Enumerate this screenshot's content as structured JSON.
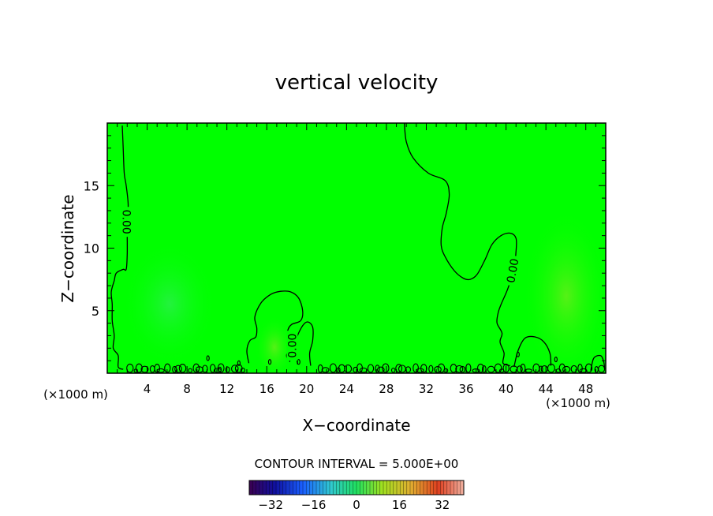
{
  "chart_data": {
    "type": "heatmap",
    "title": "vertical velocity",
    "xlabel": "X−coordinate",
    "ylabel": "Z−coordinate",
    "x_unit_label": "(×1000 m)",
    "z_unit_label": "(×1000 m)",
    "xlim": [
      0,
      50
    ],
    "ylim": [
      0,
      20
    ],
    "x_ticks": [
      4,
      8,
      12,
      16,
      20,
      24,
      28,
      32,
      36,
      40,
      44,
      48
    ],
    "y_ticks": [
      5,
      10,
      15
    ],
    "contour_level": 0,
    "contour_label": "0.00",
    "contour_interval_text": "CONTOUR INTERVAL = 5.000E+00",
    "colorbar": {
      "min": -40,
      "max": 40,
      "step": 5,
      "tick_labels": [
        "−32",
        "−16",
        "0",
        "16",
        "32"
      ],
      "tick_values": [
        -32,
        -16,
        0,
        16,
        32
      ]
    },
    "background_color": "#00ff00",
    "contours": [
      {
        "name": "left-contour",
        "points": [
          [
            1.5,
            19.8
          ],
          [
            1.6,
            18
          ],
          [
            1.7,
            16
          ],
          [
            1.9,
            15
          ],
          [
            2.1,
            13.5
          ],
          [
            2.0,
            12.3
          ],
          [
            2.0,
            11
          ],
          [
            2.0,
            9.5
          ],
          [
            1.9,
            8.3
          ],
          [
            1.6,
            8.3
          ],
          [
            0.9,
            8.0
          ],
          [
            0.7,
            7.4
          ],
          [
            0.4,
            6.5
          ],
          [
            0.5,
            5.5
          ],
          [
            0.5,
            4.2
          ],
          [
            0.7,
            3.0
          ],
          [
            0.6,
            2.0
          ],
          [
            1.1,
            1.4
          ],
          [
            1.1,
            0.5
          ],
          [
            1.6,
            0.3
          ]
        ]
      },
      {
        "name": "central-lobe",
        "points": [
          [
            14.2,
            0.8
          ],
          [
            14.0,
            1.8
          ],
          [
            14.3,
            2.6
          ],
          [
            14.9,
            2.9
          ],
          [
            15.0,
            3.6
          ],
          [
            14.8,
            4.5
          ],
          [
            15.4,
            5.6
          ],
          [
            16.4,
            6.3
          ],
          [
            17.4,
            6.55
          ],
          [
            18.4,
            6.5
          ],
          [
            19.2,
            6.0
          ],
          [
            19.6,
            5.0
          ],
          [
            19.4,
            4.2
          ],
          [
            18.5,
            3.9
          ],
          [
            18.1,
            3.4
          ],
          [
            18.1,
            2.5
          ],
          [
            18.4,
            1.8
          ],
          [
            18.3,
            0.9
          ]
        ]
      },
      {
        "name": "right-of-center-lobe",
        "points": [
          [
            19.1,
            0.7
          ],
          [
            18.9,
            1.8
          ],
          [
            19.0,
            2.8
          ],
          [
            19.6,
            3.8
          ],
          [
            20.1,
            4.1
          ],
          [
            20.6,
            3.7
          ],
          [
            20.6,
            2.6
          ],
          [
            20.3,
            1.6
          ],
          [
            20.4,
            0.6
          ]
        ]
      },
      {
        "name": "upper-right-contour",
        "points": [
          [
            29.8,
            20
          ],
          [
            30.0,
            18.5
          ],
          [
            30.7,
            17.2
          ],
          [
            32.2,
            16.0
          ],
          [
            33.9,
            15.4
          ],
          [
            34.3,
            14.3
          ],
          [
            34.0,
            12.8
          ],
          [
            33.6,
            11.6
          ],
          [
            33.5,
            10.2
          ],
          [
            33.9,
            9.3
          ],
          [
            34.8,
            8.2
          ],
          [
            35.7,
            7.6
          ],
          [
            36.4,
            7.5
          ],
          [
            37.1,
            7.9
          ],
          [
            37.9,
            9.1
          ],
          [
            38.6,
            10.3
          ],
          [
            39.5,
            11.0
          ],
          [
            40.4,
            11.2
          ],
          [
            41.0,
            10.8
          ],
          [
            41.0,
            9.7
          ],
          [
            40.8,
            8.4
          ],
          [
            40.2,
            6.8
          ],
          [
            39.5,
            5.5
          ],
          [
            39.2,
            4.8
          ],
          [
            39.1,
            4.0
          ],
          [
            39.6,
            3.2
          ],
          [
            39.4,
            2.5
          ],
          [
            39.8,
            1.6
          ],
          [
            39.7,
            0.8
          ],
          [
            40.4,
            0.6
          ]
        ]
      },
      {
        "name": "far-right-lobe",
        "points": [
          [
            40.8,
            0.5
          ],
          [
            41.2,
            1.8
          ],
          [
            41.9,
            2.8
          ],
          [
            42.9,
            2.9
          ],
          [
            43.8,
            2.5
          ],
          [
            44.4,
            1.6
          ],
          [
            44.5,
            0.6
          ]
        ]
      },
      {
        "name": "right-edge-lobe",
        "points": [
          [
            48.5,
            0.2
          ],
          [
            48.8,
            1.2
          ],
          [
            49.5,
            1.4
          ],
          [
            49.8,
            0.9
          ],
          [
            49.9,
            0.3
          ]
        ]
      }
    ]
  }
}
